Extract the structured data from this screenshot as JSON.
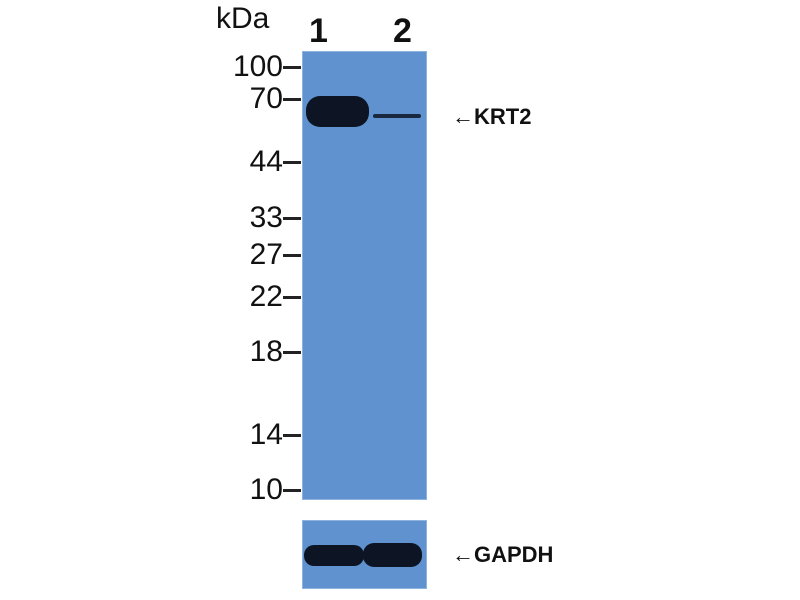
{
  "unit_label": "kDa",
  "lanes": [
    "1",
    "2"
  ],
  "markers": [
    "100",
    "70",
    "44",
    "33",
    "27",
    "22",
    "18",
    "14",
    "10"
  ],
  "targets": {
    "main": "←KRT2",
    "loading_control": "←GAPDH"
  },
  "colors": {
    "membrane": "#5f92cf",
    "band": "#0d1524"
  }
}
